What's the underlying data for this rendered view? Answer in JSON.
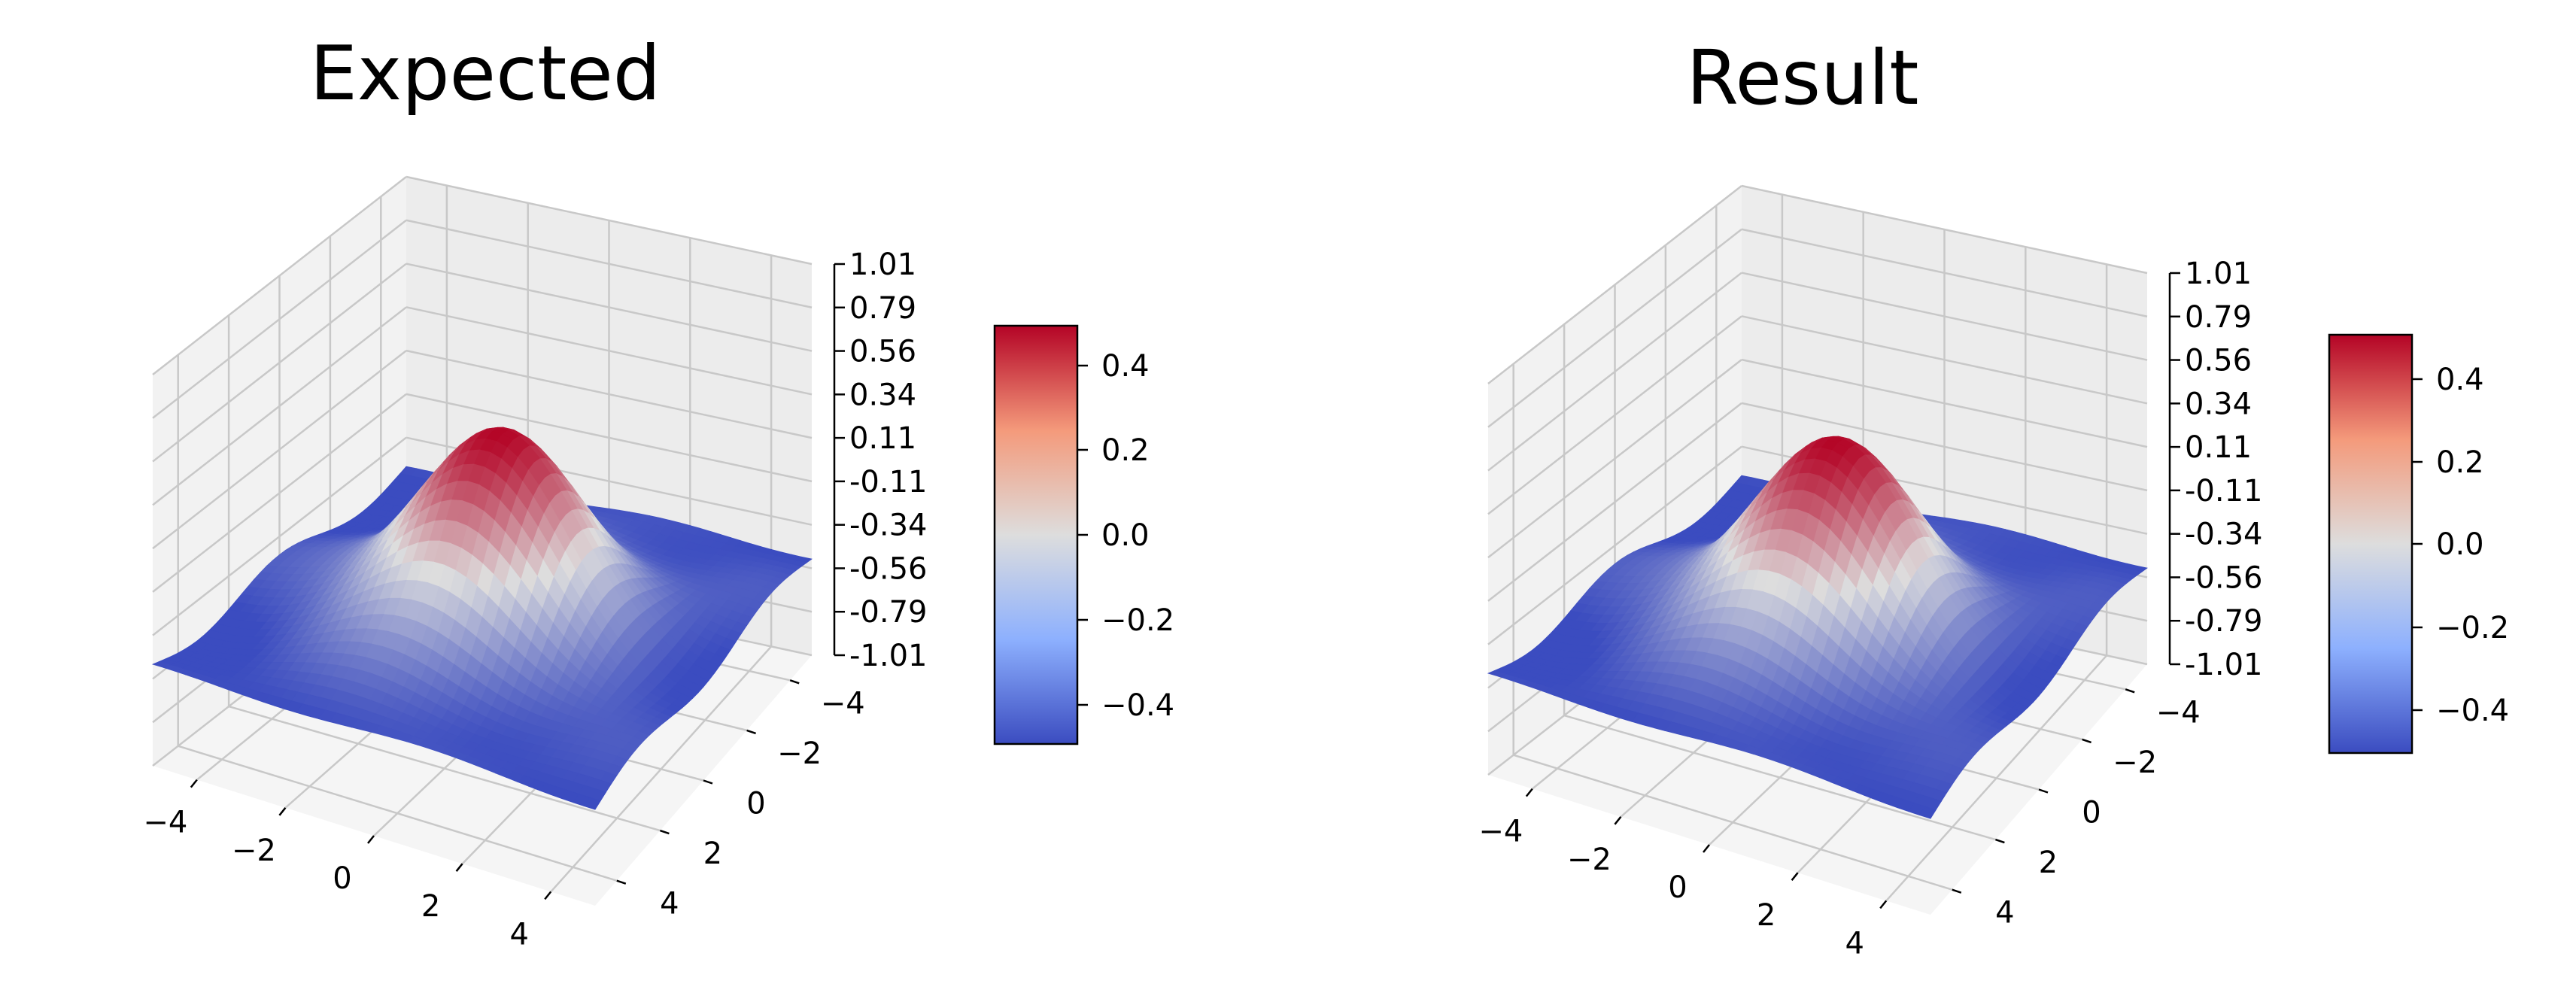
{
  "chart_data": [
    {
      "type": "surface3d",
      "title": "Expected",
      "x_ticks": [
        "−4",
        "−2",
        "0",
        "2",
        "4"
      ],
      "y_ticks": [
        "−4",
        "−2",
        "0",
        "2",
        "4"
      ],
      "z_ticks": [
        "-1.01",
        "-0.79",
        "-0.56",
        "-0.34",
        "-0.11",
        "0.11",
        "0.34",
        "0.56",
        "0.79",
        "1.01"
      ],
      "xlim": [
        -5,
        5
      ],
      "ylim": [
        -5,
        5
      ],
      "zlim": [
        -1.01,
        1.01
      ],
      "surface_peak": 0.5,
      "colormap": "coolwarm",
      "colorbar": {
        "ticks": [
          "0.4",
          "0.2",
          "0.0",
          "−0.2",
          "−0.4"
        ],
        "range": [
          -0.5,
          0.5
        ]
      },
      "grid": true
    },
    {
      "type": "surface3d",
      "title": "Result",
      "x_ticks": [
        "−4",
        "−2",
        "0",
        "2",
        "4"
      ],
      "y_ticks": [
        "−4",
        "−2",
        "0",
        "2",
        "4"
      ],
      "z_ticks": [
        "-1.01",
        "-0.79",
        "-0.56",
        "-0.34",
        "-0.11",
        "0.11",
        "0.34",
        "0.56",
        "0.79",
        "1.01"
      ],
      "xlim": [
        -5,
        5
      ],
      "ylim": [
        -5,
        5
      ],
      "zlim": [
        -1.01,
        1.01
      ],
      "surface_peak": 0.5,
      "colormap": "coolwarm",
      "colorbar": {
        "ticks": [
          "0.4",
          "0.2",
          "0.0",
          "−0.2",
          "−0.4"
        ],
        "range": [
          -0.5,
          0.5
        ]
      },
      "grid": true
    }
  ],
  "colors": {
    "colormap_low": "#3b4cc0",
    "colormap_mid": "#dddddd",
    "colormap_high": "#b40426",
    "pane_back": "#ececec",
    "pane_side": "#f2f2f2",
    "pane_floor": "#f5f5f5",
    "grid": "#c8c8c8"
  }
}
